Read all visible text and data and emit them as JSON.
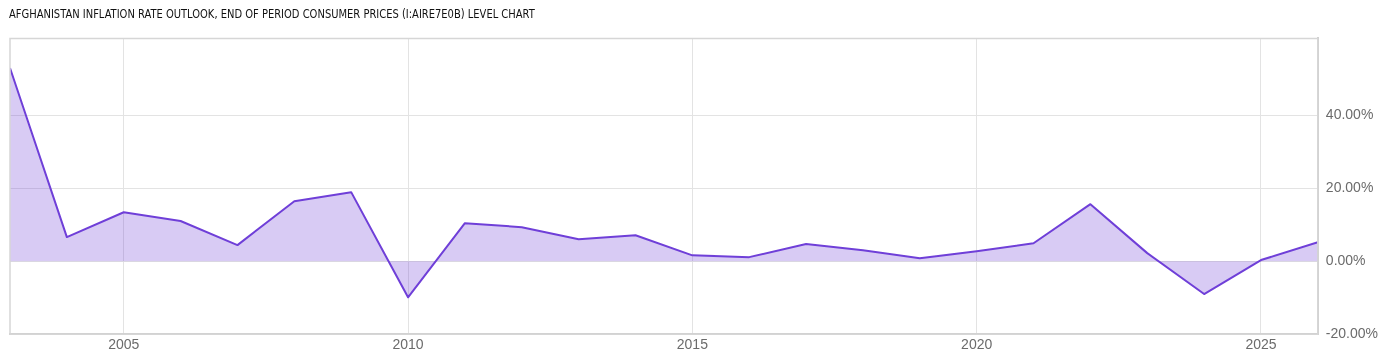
{
  "chart_data": {
    "type": "area",
    "title": "AFGHANISTAN INFLATION RATE OUTLOOK, END OF PERIOD CONSUMER PRICES (I:AIRE7E0B) LEVEL CHART",
    "x": [
      2003,
      2004,
      2005,
      2006,
      2007,
      2008,
      2009,
      2010,
      2011,
      2012,
      2013,
      2014,
      2015,
      2016,
      2017,
      2018,
      2019,
      2020,
      2021,
      2022,
      2023,
      2024,
      2025,
      2026
    ],
    "series": [
      {
        "color": "#6f3fd8",
        "values": [
          52.9,
          6.6,
          13.4,
          11.0,
          4.4,
          16.4,
          18.9,
          -9.9,
          10.4,
          9.3,
          6.0,
          7.1,
          1.6,
          1.1,
          4.7,
          3.0,
          0.8,
          2.7,
          4.9,
          15.6,
          2.2,
          -9.0,
          0.3,
          5.2
        ]
      }
    ],
    "xlim": [
      2003,
      2026
    ],
    "xticks": [
      2005,
      2010,
      2015,
      2020,
      2025
    ],
    "ylim": [
      -20,
      61
    ],
    "yticks": [
      {
        "value": -20,
        "label": "-20.00%"
      },
      {
        "value": 0,
        "label": "0.00%"
      },
      {
        "value": 20,
        "label": "20.00%"
      },
      {
        "value": 40,
        "label": "40.00%"
      }
    ],
    "grid": true,
    "legend": false,
    "marker": "none",
    "line_style": "solid"
  }
}
